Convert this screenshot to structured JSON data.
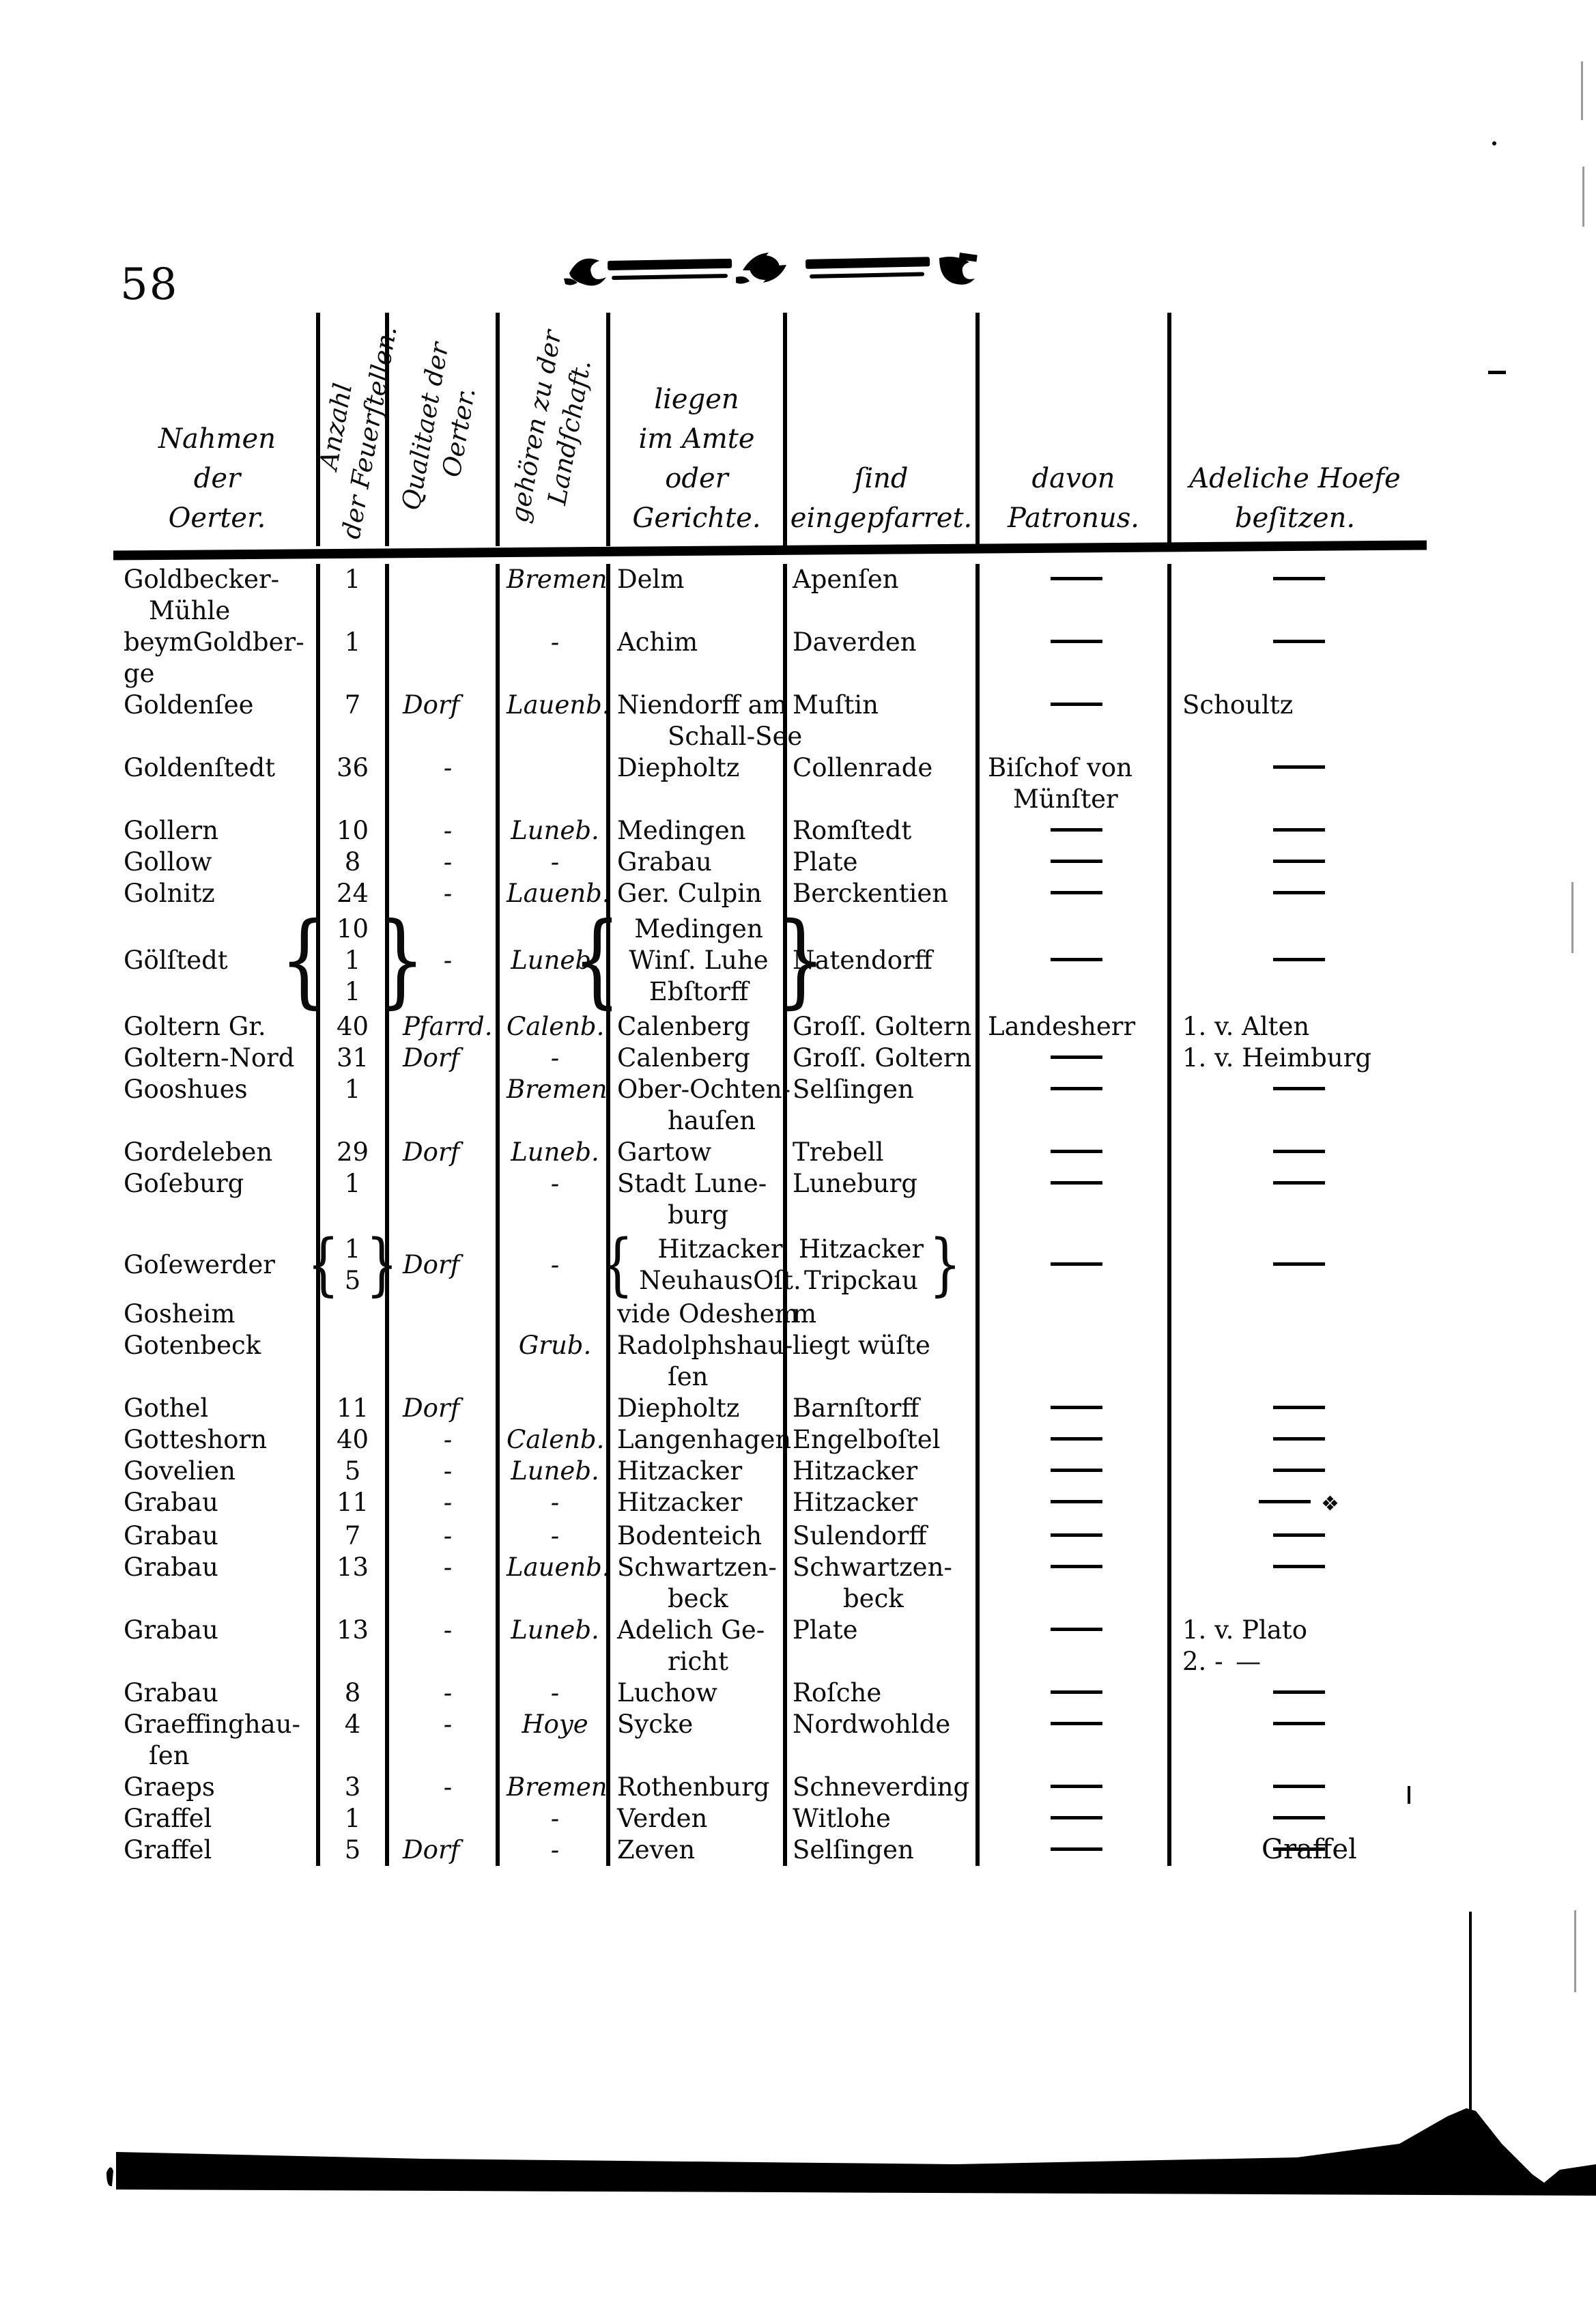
{
  "page": {
    "number": "58",
    "catchword": "Graffel"
  },
  "table": {
    "headers": [
      {
        "key": "name",
        "label": "Nahmen\nder\nOerter.",
        "rotated": false
      },
      {
        "key": "anzahl",
        "label": "Anzahl\nder Feuerſtellen.",
        "rotated": true
      },
      {
        "key": "qualitaet",
        "label": "Qualitaet der\nOerter.",
        "rotated": true
      },
      {
        "key": "landschaft",
        "label": "gehören zu der\nLandſchaft.",
        "rotated": true
      },
      {
        "key": "amte",
        "label": "liegen\nim Amte\noder\nGerichte.",
        "rotated": false
      },
      {
        "key": "eingepfarret",
        "label": "ſind\neingepfarret.",
        "rotated": false
      },
      {
        "key": "patronus",
        "label": "davon\nPatronus.",
        "rotated": false
      },
      {
        "key": "adeliche",
        "label": "Adeliche Hoefe\nbeſitzen.",
        "rotated": false
      }
    ],
    "rows": [
      {
        "name": "Goldbecker-\n Mühle",
        "anzahl": "1",
        "qualitaet": "",
        "landschaft": "Bremen",
        "amte": "Delm",
        "eingepfarret": "Apenſen",
        "patronus": "—",
        "adeliche": "—"
      },
      {
        "name": "beymGoldber-\nge",
        "anzahl": "1",
        "qualitaet": "",
        "landschaft": "-",
        "amte": "Achim",
        "eingepfarret": "Daverden",
        "patronus": "—",
        "adeliche": "—"
      },
      {
        "name": "Goldenſee",
        "anzahl": "7",
        "qualitaet": "Dorf",
        "landschaft": "Lauenb.",
        "amte": "Niendorff am\n  Schall-See",
        "eingepfarret": "Muſtin",
        "patronus": "—",
        "adeliche": "Schoultz"
      },
      {
        "name": "Goldenſtedt",
        "anzahl": "36",
        "qualitaet": "-",
        "landschaft": "",
        "amte": "Diepholtz",
        "eingepfarret": "Collenrade",
        "patronus": "Biſchof von\n Münſter",
        "adeliche": "—"
      },
      {
        "name": "Gollern",
        "anzahl": "10",
        "qualitaet": "-",
        "landschaft": "Luneb.",
        "amte": "Medingen",
        "eingepfarret": "Romſtedt",
        "patronus": "—",
        "adeliche": "—"
      },
      {
        "name": "Gollow",
        "anzahl": "8",
        "qualitaet": "-",
        "landschaft": "-",
        "amte": "Grabau",
        "eingepfarret": "Plate",
        "patronus": "—",
        "adeliche": "—"
      },
      {
        "name": "Golnitz",
        "anzahl": "24",
        "qualitaet": "-",
        "landschaft": "Lauenb.",
        "amte": "Ger. Culpin",
        "eingepfarret": "Berckentien",
        "patronus": "—",
        "adeliche": "—"
      },
      {
        "name": "Gölſtedt",
        "anzahl": {
          "brace_left": "{",
          "lines": [
            "10",
            "1",
            "1"
          ],
          "brace_right": "}"
        },
        "qualitaet": "-",
        "landschaft": "Luneb.",
        "amte": {
          "brace_left": "{",
          "lines": [
            "Medingen",
            "Winſ. Luhe",
            "Ebſtorff"
          ],
          "brace_right": "}"
        },
        "eingepfarret": "Natendorff",
        "patronus": "—",
        "adeliche": "—"
      },
      {
        "name": "Goltern Gr.",
        "anzahl": "40",
        "qualitaet": "Pfarrd.",
        "landschaft": "Calenb.",
        "amte": "Calenberg",
        "eingepfarret": "Groſſ. Goltern",
        "patronus": "Landesherr",
        "adeliche": "1. v. Alten"
      },
      {
        "name": "Goltern-Nord",
        "anzahl": "31",
        "qualitaet": "Dorf",
        "landschaft": "-",
        "amte": "Calenberg",
        "eingepfarret": "Groſſ. Goltern",
        "patronus": "—",
        "adeliche": "1. v. Heimburg"
      },
      {
        "name": "Gooshues",
        "anzahl": "1",
        "qualitaet": "",
        "landschaft": "Bremen",
        "amte": "Ober-Ochten-\n  hauſen",
        "eingepfarret": "Selſingen",
        "patronus": "—",
        "adeliche": "—"
      },
      {
        "name": "Gordeleben",
        "anzahl": "29",
        "qualitaet": "Dorf",
        "landschaft": "Luneb.",
        "amte": "Gartow",
        "eingepfarret": "Trebell",
        "patronus": "—",
        "adeliche": "—"
      },
      {
        "name": "Goſeburg",
        "anzahl": "1",
        "qualitaet": "",
        "landschaft": "-",
        "amte": "Stadt Lune-\n  burg",
        "eingepfarret": "Luneburg",
        "patronus": "—",
        "adeliche": "—"
      },
      {
        "name": "Goſewerder",
        "anzahl": {
          "brace_left": "{",
          "lines": [
            "1",
            "5"
          ],
          "brace_right": "}"
        },
        "qualitaet": "Dorf",
        "landschaft": "-",
        "amte": {
          "brace_left": "{",
          "lines": [
            "Hitzacker",
            "NeuhausOſt."
          ],
          "brace_right": ""
        },
        "eingepfarret": {
          "brace_left": "",
          "lines": [
            "Hitzacker",
            "Tripckau"
          ],
          "brace_right": "}"
        },
        "patronus": "—",
        "adeliche": "—"
      },
      {
        "name": "Gosheim",
        "anzahl": "",
        "qualitaet": "",
        "landschaft": "",
        "amte": "vide Odeshem",
        "eingepfarret": "m",
        "patronus": "",
        "adeliche": ""
      },
      {
        "name": "Gotenbeck",
        "anzahl": "",
        "qualitaet": "",
        "landschaft": "Grub.",
        "amte": "Radolphshau-\n  ſen",
        "eingepfarret": "liegt wüſte",
        "patronus": "",
        "adeliche": ""
      },
      {
        "name": "Gothel",
        "anzahl": "11",
        "qualitaet": "Dorf",
        "landschaft": "",
        "amte": "Diepholtz",
        "eingepfarret": "Barnſtorff",
        "patronus": "—",
        "adeliche": "—"
      },
      {
        "name": "Gotteshorn",
        "anzahl": "40",
        "qualitaet": "-",
        "landschaft": "Calenb.",
        "amte": "Langenhagen",
        "eingepfarret": "Engelboſtel",
        "patronus": "—",
        "adeliche": "—"
      },
      {
        "name": "Govelien",
        "anzahl": "5",
        "qualitaet": "-",
        "landschaft": "Luneb.",
        "amte": "Hitzacker",
        "eingepfarret": "Hitzacker",
        "patronus": "—",
        "adeliche": "—"
      },
      {
        "name": "Grabau",
        "anzahl": "11",
        "qualitaet": "-",
        "landschaft": "-",
        "amte": "Hitzacker",
        "eingepfarret": "Hitzacker",
        "patronus": "—",
        "adeliche": "— ❖"
      },
      {
        "name": "Grabau",
        "anzahl": "7",
        "qualitaet": "-",
        "landschaft": "-",
        "amte": "Bodenteich",
        "eingepfarret": "Sulendorff",
        "patronus": "—",
        "adeliche": "—"
      },
      {
        "name": "Grabau",
        "anzahl": "13",
        "qualitaet": "-",
        "landschaft": "Lauenb.",
        "amte": "Schwartzen-\n  beck",
        "eingepfarret": "Schwartzen-\n  beck",
        "patronus": "—",
        "adeliche": "—"
      },
      {
        "name": "Grabau",
        "anzahl": "13",
        "qualitaet": "-",
        "landschaft": "Luneb.",
        "amte": "Adelich Ge-\n  richt",
        "eingepfarret": "Plate",
        "patronus": "—",
        "adeliche": "1. v. Plato\n2. - —"
      },
      {
        "name": "Grabau",
        "anzahl": "8",
        "qualitaet": "-",
        "landschaft": "-",
        "amte": "Luchow",
        "eingepfarret": "Roſche",
        "patronus": "—",
        "adeliche": "—"
      },
      {
        "name": "Graeffinghau-\n ſen",
        "anzahl": "4",
        "qualitaet": "-",
        "landschaft": "Hoye",
        "amte": "Sycke",
        "eingepfarret": "Nordwohlde",
        "patronus": "—",
        "adeliche": "—"
      },
      {
        "name": "Graeps",
        "anzahl": "3",
        "qualitaet": "-",
        "landschaft": "Bremen",
        "amte": "Rothenburg",
        "eingepfarret": "Schneverding",
        "patronus": "—",
        "adeliche": "—"
      },
      {
        "name": "Graffel",
        "anzahl": "1",
        "qualitaet": "",
        "landschaft": "-",
        "amte": "Verden",
        "eingepfarret": "Witlohe",
        "patronus": "—",
        "adeliche": "—"
      },
      {
        "name": "Graffel",
        "anzahl": "5",
        "qualitaet": "Dorf",
        "landschaft": "-",
        "amte": "Zeven",
        "eingepfarret": "Selſingen",
        "patronus": "—",
        "adeliche": "—"
      }
    ]
  }
}
